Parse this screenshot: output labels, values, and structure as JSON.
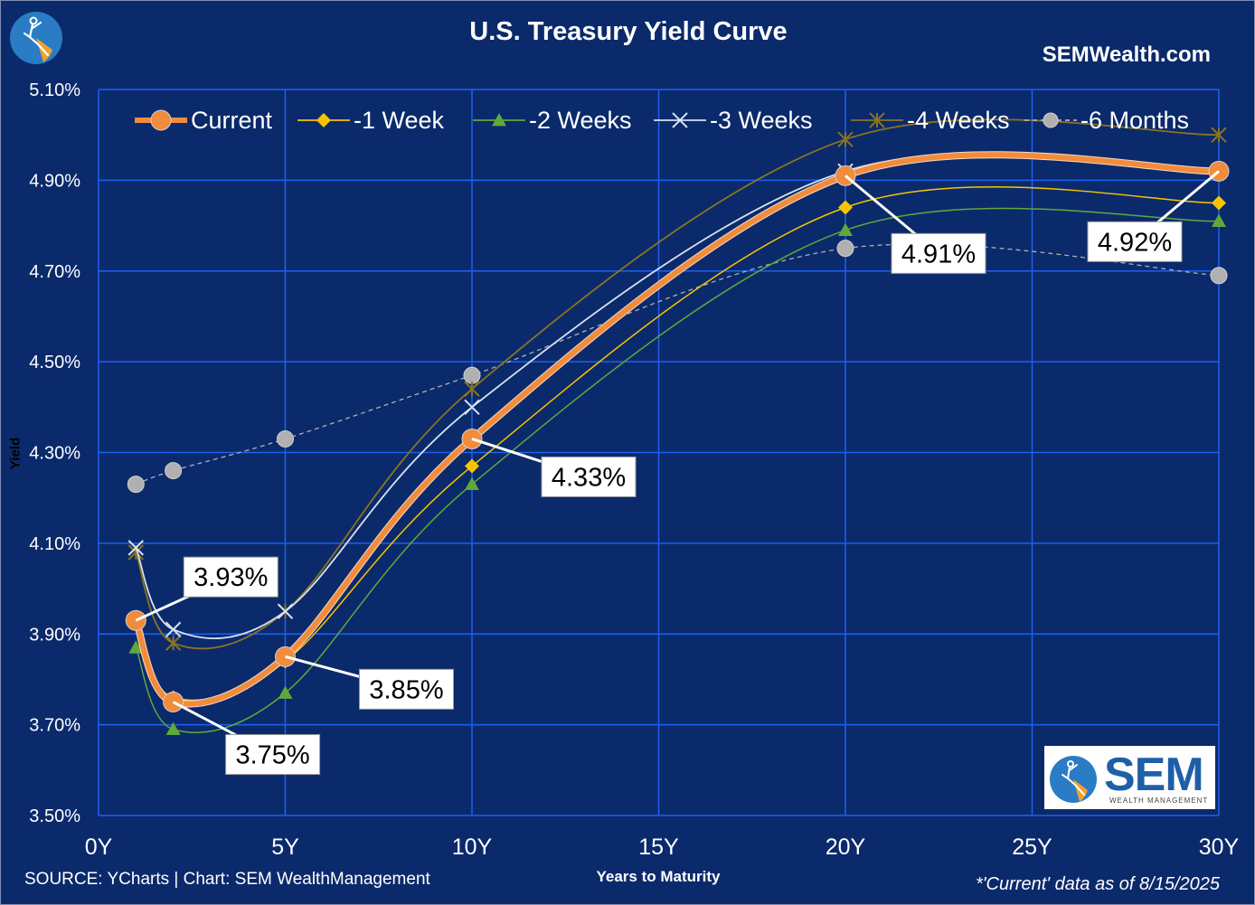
{
  "header": {
    "title": "U.S. Treasury Yield Curve",
    "website": "SEMWealth.com"
  },
  "footer": {
    "source": "SOURCE: YCharts | Chart: SEM WealthManagement",
    "as_of": "*'Current' data as of 8/15/2025"
  },
  "logo": {
    "name": "SEM",
    "tagline": "WEALTH MANAGEMENT"
  },
  "colors": {
    "background": "#0b2a6b",
    "grid": "#1f5ff0",
    "current": "#f08c3c",
    "week1": "#f7c400",
    "weeks2": "#5fa83c",
    "weeks3": "#d8e0f0",
    "weeks4": "#8a7420",
    "months6": "#b0b0b0"
  },
  "chart_data": {
    "type": "line",
    "title": "U.S. Treasury Yield Curve",
    "xlabel": "Years to Maturity",
    "ylabel": "Yield",
    "xlim": [
      0,
      30
    ],
    "ylim": [
      3.5,
      5.1
    ],
    "x_ticks": [
      0,
      5,
      10,
      15,
      20,
      25,
      30
    ],
    "x_tick_labels": [
      "0Y",
      "5Y",
      "10Y",
      "15Y",
      "20Y",
      "25Y",
      "30Y"
    ],
    "y_ticks": [
      3.5,
      3.7,
      3.9,
      4.1,
      4.3,
      4.5,
      4.7,
      4.9,
      5.1
    ],
    "y_tick_labels": [
      "3.50%",
      "3.70%",
      "3.90%",
      "4.10%",
      "4.30%",
      "4.50%",
      "4.70%",
      "4.90%",
      "5.10%"
    ],
    "grid": true,
    "legend_position": "top",
    "x": [
      1,
      2,
      5,
      10,
      20,
      30
    ],
    "series": [
      {
        "name": "Current",
        "values": [
          3.93,
          3.75,
          3.85,
          4.33,
          4.91,
          4.92
        ],
        "color": "#f08c3c",
        "marker": "circle",
        "style": "solid"
      },
      {
        "name": "-1 Week",
        "values": [
          3.93,
          3.76,
          3.84,
          4.27,
          4.84,
          4.85
        ],
        "color": "#f7c400",
        "marker": "diamond",
        "style": "solid"
      },
      {
        "name": "-2 Weeks",
        "values": [
          3.87,
          3.69,
          3.77,
          4.23,
          4.79,
          4.81
        ],
        "color": "#5fa83c",
        "marker": "triangle",
        "style": "solid"
      },
      {
        "name": "-3 Weeks",
        "values": [
          4.09,
          3.91,
          3.95,
          4.4,
          4.92,
          4.92
        ],
        "color": "#d8e0f0",
        "marker": "x",
        "style": "solid"
      },
      {
        "name": "-4 Weeks",
        "values": [
          4.08,
          3.88,
          3.95,
          4.44,
          4.99,
          5.0
        ],
        "color": "#8a7420",
        "marker": "star",
        "style": "solid"
      },
      {
        "name": "-6 Months",
        "values": [
          4.23,
          4.26,
          4.33,
          4.47,
          4.75,
          4.69
        ],
        "color": "#b0b0b0",
        "marker": "circle",
        "style": "dashed"
      }
    ],
    "annotations": [
      {
        "text": "3.93%",
        "x": 1,
        "y": 3.93
      },
      {
        "text": "3.75%",
        "x": 2,
        "y": 3.75
      },
      {
        "text": "3.85%",
        "x": 5,
        "y": 3.85
      },
      {
        "text": "4.33%",
        "x": 10,
        "y": 4.33
      },
      {
        "text": "4.91%",
        "x": 20,
        "y": 4.91
      },
      {
        "text": "4.92%",
        "x": 30,
        "y": 4.92
      }
    ]
  }
}
